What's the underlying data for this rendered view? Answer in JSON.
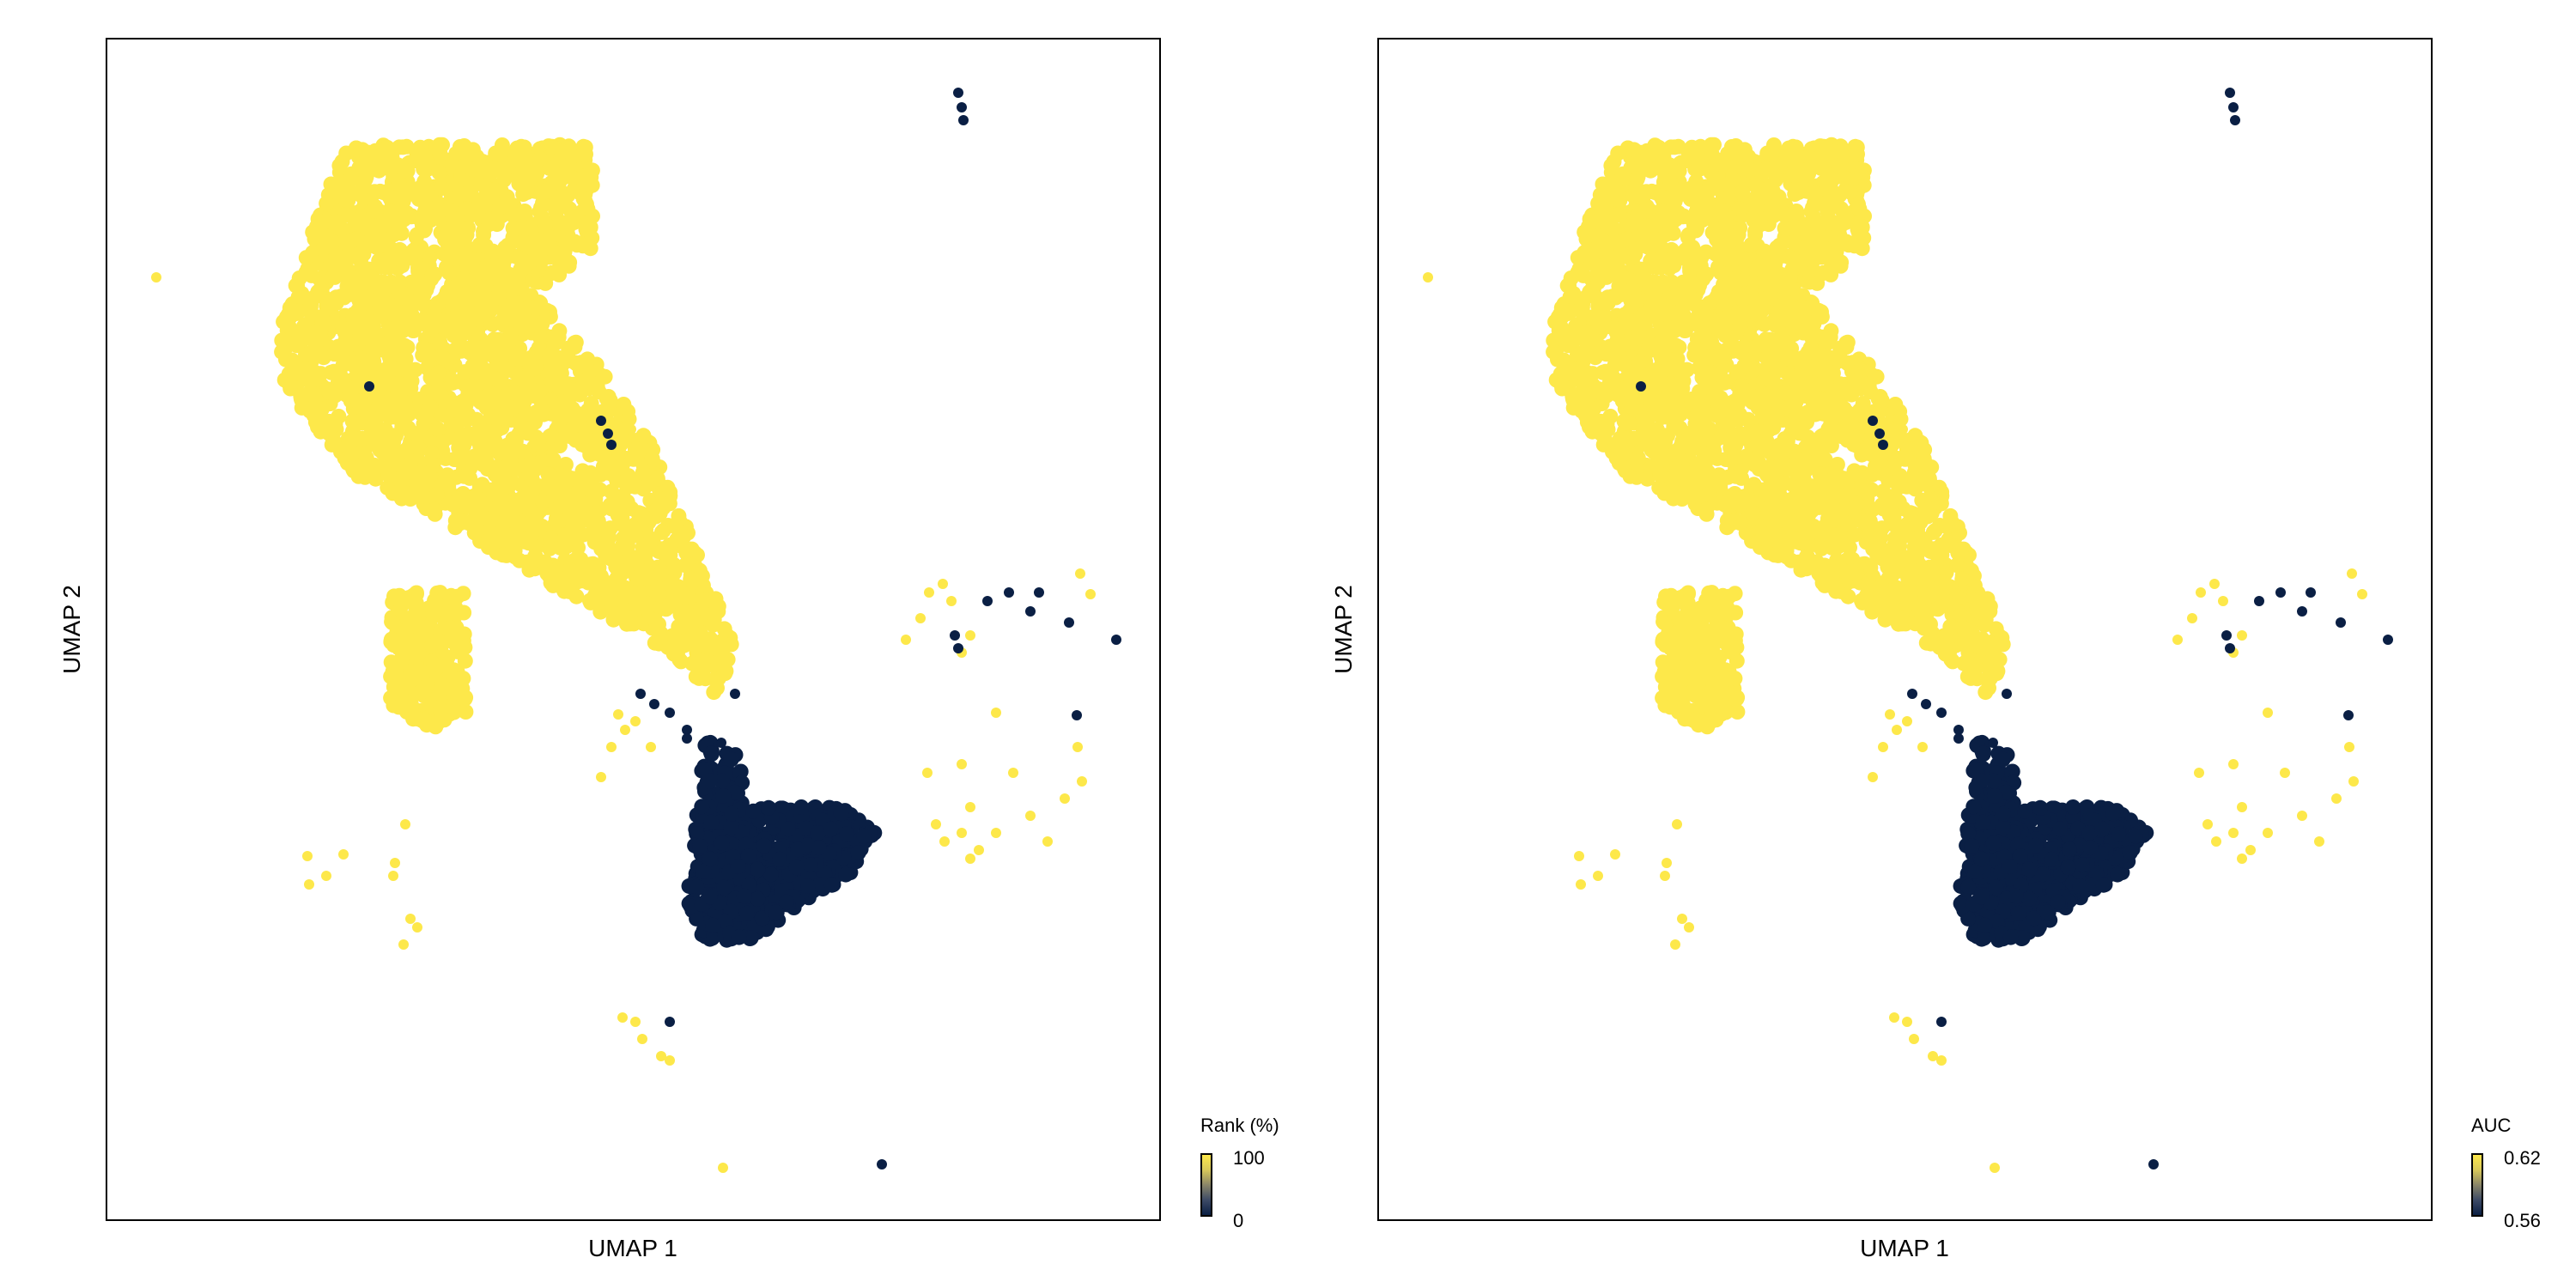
{
  "colors": {
    "low": "#0a1f44",
    "high": "#fde84a",
    "frame": "#000000",
    "background": "#ffffff"
  },
  "chart_data": [
    {
      "type": "scatter",
      "xlabel": "UMAP 1",
      "ylabel": "UMAP 2",
      "legend": {
        "title": "Rank (%)",
        "min_label": "0",
        "max_label": "100",
        "placement": "bottom-right"
      },
      "color_encoding": "continuous viridis-like (dark navy = low, yellow = high)",
      "clusters": [
        {
          "name": "large-upper-cluster",
          "value": "high"
        },
        {
          "name": "left-small-cluster",
          "value": "high"
        },
        {
          "name": "lower-right-dense-cluster",
          "value": "low"
        },
        {
          "name": "right-scattered-group",
          "value": "high"
        },
        {
          "name": "bottom-small-group",
          "value": "high"
        }
      ]
    },
    {
      "type": "scatter",
      "xlabel": "UMAP 1",
      "ylabel": "UMAP 2",
      "legend": {
        "title": "AUC",
        "min_label": "0.56",
        "max_label": "0.62",
        "placement": "bottom-right"
      },
      "color_encoding": "continuous viridis-like (dark navy = low, yellow = high)",
      "clusters": [
        {
          "name": "large-upper-cluster",
          "value": "high"
        },
        {
          "name": "left-small-cluster",
          "value": "high"
        },
        {
          "name": "lower-right-dense-cluster",
          "value": "low"
        },
        {
          "name": "right-scattered-group",
          "value": "high"
        },
        {
          "name": "bottom-small-group",
          "value": "high"
        }
      ]
    }
  ]
}
